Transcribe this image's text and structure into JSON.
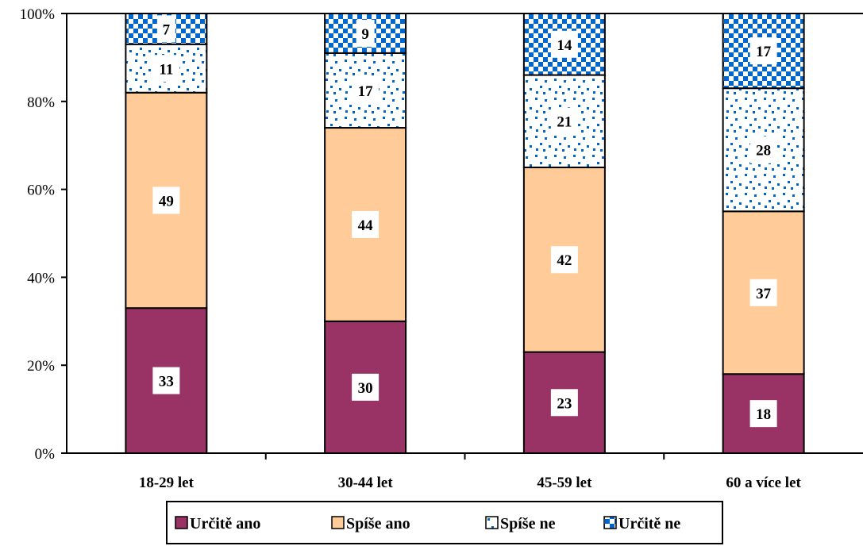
{
  "chart_data": {
    "type": "bar",
    "stacked": "percent",
    "categories": [
      "18-29 let",
      "30-44 let",
      "45-59 let",
      "60 a více let"
    ],
    "series": [
      {
        "name": "Určitě ano",
        "values": [
          33,
          30,
          23,
          18
        ],
        "color": "#993366",
        "pattern": "solid"
      },
      {
        "name": "Spíše ano",
        "values": [
          49,
          44,
          42,
          37
        ],
        "color": "#FFCC99",
        "pattern": "solid"
      },
      {
        "name": "Spíše ne",
        "values": [
          11,
          17,
          21,
          28
        ],
        "color": "#0066CC",
        "pattern": "sparse-dots"
      },
      {
        "name": "Určitě ne",
        "values": [
          7,
          9,
          14,
          17
        ],
        "color": "#0066CC",
        "pattern": "checker"
      }
    ],
    "y_ticks": [
      "0%",
      "20%",
      "40%",
      "60%",
      "80%",
      "100%"
    ],
    "ylim": [
      0,
      100
    ],
    "grid": false,
    "legend_position": "bottom"
  }
}
